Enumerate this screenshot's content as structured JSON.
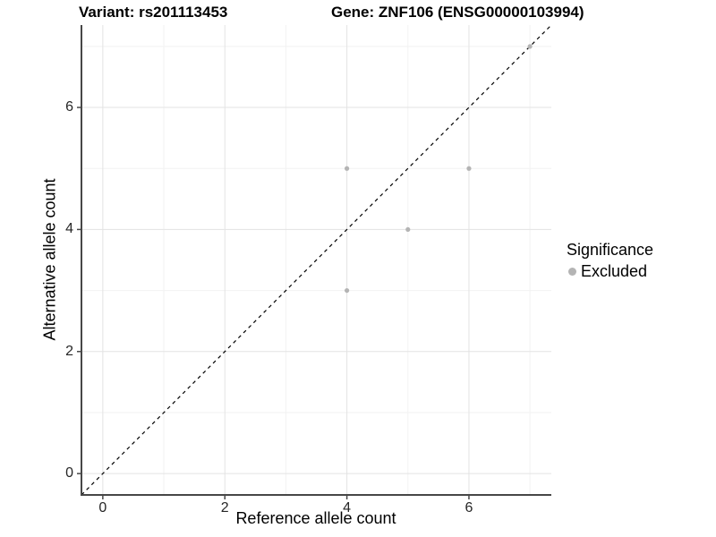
{
  "titles": {
    "variant": "Variant: rs201113453",
    "gene": "Gene: ZNF106 (ENSG00000103994)"
  },
  "axes": {
    "x_label": "Reference allele count",
    "y_label": "Alternative allele count"
  },
  "legend": {
    "title": "Significance",
    "items": [
      {
        "label": "Excluded",
        "color": "#b4b4b4",
        "marker": "dot"
      }
    ]
  },
  "chart_data": {
    "type": "scatter",
    "title": "Variant: rs201113453    Gene: ZNF106 (ENSG00000103994)",
    "xlabel": "Reference allele count",
    "ylabel": "Alternative allele count",
    "xlim": [
      -0.35,
      7.35
    ],
    "ylim": [
      -0.35,
      7.35
    ],
    "x_ticks": [
      0,
      2,
      4,
      6
    ],
    "y_ticks": [
      0,
      2,
      4,
      6
    ],
    "minor_gridlines": [
      1,
      3,
      5,
      7
    ],
    "grid": "on",
    "legend_position": "right",
    "series": [
      {
        "name": "Excluded",
        "type": "scatter",
        "color": "#b4b4b4",
        "points": [
          [
            4,
            3
          ],
          [
            4,
            5
          ],
          [
            5,
            4
          ],
          [
            6,
            5
          ],
          [
            7,
            7
          ]
        ]
      }
    ],
    "reference_line": {
      "type": "identity",
      "style": "dashed",
      "color": "#000000",
      "from": [
        -0.35,
        -0.35
      ],
      "to": [
        7.35,
        7.35
      ]
    },
    "colors": {
      "grid_major": "#e3e3e3",
      "grid_minor": "#f2f2f2",
      "axis_line": "#474747",
      "tick_mark": "#474747",
      "tick_text": "#262626",
      "point": "#b4b4b4"
    }
  }
}
